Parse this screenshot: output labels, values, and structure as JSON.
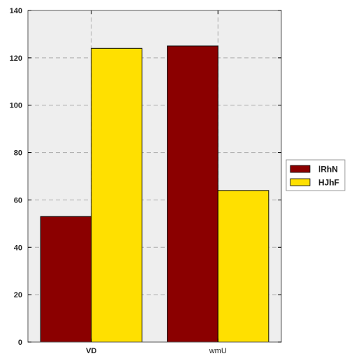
{
  "chart_data": {
    "type": "bar",
    "categories": [
      "VD",
      "wmU"
    ],
    "series": [
      {
        "name": "lRhN",
        "values": [
          53,
          125
        ],
        "color": "#8b0000"
      },
      {
        "name": "HJhF",
        "values": [
          124,
          64
        ],
        "color": "#ffe000"
      }
    ],
    "ylim": [
      0,
      140
    ],
    "yticks": [
      0,
      20,
      40,
      60,
      80,
      100,
      120,
      140
    ],
    "grid": true,
    "legend_position": "right",
    "plot_background": "#eeeeee",
    "bold_categories": [
      "VD"
    ]
  }
}
